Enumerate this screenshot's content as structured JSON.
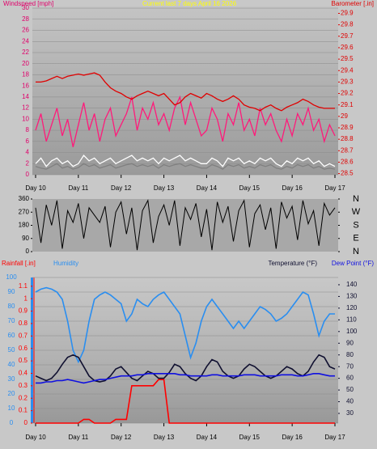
{
  "chart_data": [
    {
      "type": "line",
      "title": "Current last 7 days April 16 2026",
      "ylabel": "Windspeed [mph]",
      "y2label": "Barometer [.in]",
      "x": [
        10,
        10.125,
        10.25,
        10.375,
        10.5,
        10.625,
        10.75,
        10.875,
        11,
        11.125,
        11.25,
        11.375,
        11.5,
        11.625,
        11.75,
        11.875,
        12,
        12.125,
        12.25,
        12.375,
        12.5,
        12.625,
        12.75,
        12.875,
        13,
        13.125,
        13.25,
        13.375,
        13.5,
        13.625,
        13.75,
        13.875,
        14,
        14.125,
        14.25,
        14.375,
        14.5,
        14.625,
        14.75,
        14.875,
        15,
        15.125,
        15.25,
        15.375,
        15.5,
        15.625,
        15.75,
        15.875,
        16,
        16.125,
        16.25,
        16.375,
        16.5,
        16.625,
        16.75,
        16.875,
        17
      ],
      "xlim": [
        10,
        17
      ],
      "xticks": [
        {
          "value": 10,
          "label": "Day 10"
        },
        {
          "value": 11,
          "label": "Day 11"
        },
        {
          "value": 12,
          "label": "Day 12"
        },
        {
          "value": 13,
          "label": "Day 13"
        },
        {
          "value": 14,
          "label": "Day 14"
        },
        {
          "value": 15,
          "label": "Day 15"
        },
        {
          "value": 16,
          "label": "Day 16"
        },
        {
          "value": 17,
          "label": "Day 17"
        }
      ],
      "ylim": [
        0,
        30.3
      ],
      "yticks": [
        0,
        2,
        4,
        6,
        8,
        10,
        12,
        14,
        16,
        18,
        20,
        22,
        24,
        26,
        28,
        30
      ],
      "y2lim": [
        28.49,
        29.96
      ],
      "y2ticks": [
        28.5,
        28.6,
        28.7,
        28.8,
        28.9,
        29,
        29.1,
        29.2,
        29.3,
        29.4,
        29.5,
        29.6,
        29.7,
        29.8,
        29.9
      ],
      "grid": true,
      "series": [
        {
          "color": "#ff1a7a",
          "values": [
            8,
            11,
            6,
            9,
            12,
            7,
            10,
            5,
            9,
            13,
            8,
            11,
            6,
            10,
            12,
            7,
            9,
            11,
            14,
            8,
            12,
            10,
            13,
            9,
            11,
            8,
            12,
            14,
            9,
            13,
            10,
            7,
            8,
            12,
            10,
            6,
            11,
            9,
            13,
            8,
            10,
            7,
            12,
            9,
            11,
            8,
            6,
            10,
            7,
            11,
            9,
            12,
            8,
            10,
            6,
            9,
            7
          ]
        },
        {
          "color": "#808080",
          "values": [
            1.5,
            1.2,
            1,
            1.5,
            2,
            1.2,
            1.5,
            1,
            1.3,
            2,
            1.5,
            1.8,
            1.2,
            1.5,
            1.8,
            1.2,
            1.5,
            1.8,
            2,
            1.5,
            1.8,
            1.5,
            1.8,
            1.2,
            1.8,
            1.5,
            1.8,
            2,
            1.5,
            1.8,
            1.5,
            1.2,
            1.2,
            1.8,
            1.5,
            1,
            1.8,
            1.5,
            1.8,
            1.2,
            1.5,
            1.2,
            1.8,
            1.5,
            1.8,
            1.2,
            1,
            1.5,
            1.2,
            1.8,
            1.5,
            1.8,
            1.2,
            1.5,
            1,
            1.2,
            1
          ]
        },
        {
          "color": "#ffffff",
          "values": [
            2,
            3,
            1.5,
            2.5,
            3,
            2,
            2.5,
            1.5,
            2,
            3.5,
            2.5,
            3,
            2,
            2.5,
            3,
            2,
            2.5,
            3,
            3.5,
            2.5,
            3,
            2.5,
            3,
            2,
            3,
            2.5,
            3,
            3.5,
            2.5,
            3,
            2.5,
            2,
            2,
            3,
            2.5,
            1.5,
            3,
            2.5,
            3,
            2,
            2.5,
            2,
            3,
            2.5,
            3,
            2,
            1.5,
            2.5,
            2,
            3,
            2.5,
            3,
            2,
            2.5,
            1.5,
            2,
            1.5
          ]
        },
        {
          "color": "#e00000",
          "axis": "y2",
          "values": [
            29.3,
            29.3,
            29.31,
            29.33,
            29.35,
            29.33,
            29.35,
            29.36,
            29.37,
            29.36,
            29.37,
            29.38,
            29.36,
            29.3,
            29.25,
            29.22,
            29.2,
            29.17,
            29.15,
            29.18,
            29.2,
            29.22,
            29.2,
            29.18,
            29.2,
            29.15,
            29.1,
            29.12,
            29.17,
            29.2,
            29.18,
            29.16,
            29.2,
            29.18,
            29.15,
            29.13,
            29.15,
            29.18,
            29.15,
            29.1,
            29.08,
            29.07,
            29.05,
            29.08,
            29.1,
            29.07,
            29.05,
            29.08,
            29.1,
            29.12,
            29.15,
            29.13,
            29.1,
            29.08,
            29.07,
            29.07,
            29.07
          ]
        }
      ]
    },
    {
      "type": "line",
      "x": [
        10,
        10.125,
        10.25,
        10.375,
        10.5,
        10.625,
        10.75,
        10.875,
        11,
        11.125,
        11.25,
        11.375,
        11.5,
        11.625,
        11.75,
        11.875,
        12,
        12.125,
        12.25,
        12.375,
        12.5,
        12.625,
        12.75,
        12.875,
        13,
        13.125,
        13.25,
        13.375,
        13.5,
        13.625,
        13.75,
        13.875,
        14,
        14.125,
        14.25,
        14.375,
        14.5,
        14.625,
        14.75,
        14.875,
        15,
        15.125,
        15.25,
        15.375,
        15.5,
        15.625,
        15.75,
        15.875,
        16,
        16.125,
        16.25,
        16.375,
        16.5,
        16.625,
        16.75,
        16.875,
        17
      ],
      "xlim": [
        10,
        17
      ],
      "ylim": [
        0,
        360
      ],
      "yticks": [
        0,
        90,
        180,
        270,
        360
      ],
      "y2lim": [
        0,
        360
      ],
      "y2ticks": [
        {
          "value": 0,
          "label": "N"
        },
        {
          "value": 90,
          "label": "E"
        },
        {
          "value": 180,
          "label": "S"
        },
        {
          "value": 270,
          "label": "W"
        },
        {
          "value": 360,
          "label": "N"
        }
      ],
      "grid": false,
      "series": [
        {
          "color": "#000000",
          "values": [
            300,
            60,
            320,
            180,
            350,
            20,
            280,
            200,
            330,
            90,
            300,
            250,
            200,
            310,
            30,
            270,
            340,
            120,
            300,
            10,
            280,
            350,
            60,
            240,
            320,
            180,
            350,
            40,
            300,
            220,
            330,
            100,
            290,
            10,
            340,
            200,
            310,
            70,
            280,
            350,
            30,
            260,
            320,
            150,
            300,
            20,
            340,
            230,
            310,
            80,
            350,
            190,
            280,
            40,
            330,
            250,
            300
          ]
        }
      ]
    },
    {
      "type": "line",
      "x": [
        10,
        10.125,
        10.25,
        10.375,
        10.5,
        10.625,
        10.75,
        10.875,
        11,
        11.125,
        11.25,
        11.375,
        11.5,
        11.625,
        11.75,
        11.875,
        12,
        12.125,
        12.25,
        12.375,
        12.5,
        12.625,
        12.75,
        12.875,
        13,
        13.125,
        13.25,
        13.375,
        13.5,
        13.625,
        13.75,
        13.875,
        14,
        14.125,
        14.25,
        14.375,
        14.5,
        14.625,
        14.75,
        14.875,
        15,
        15.125,
        15.25,
        15.375,
        15.5,
        15.625,
        15.75,
        15.875,
        16,
        16.125,
        16.25,
        16.375,
        16.5,
        16.625,
        16.75,
        16.875,
        17
      ],
      "xlim": [
        10,
        17
      ],
      "xticks": [
        {
          "value": 10,
          "label": "Day 10"
        },
        {
          "value": 11,
          "label": "Day 11"
        },
        {
          "value": 12,
          "label": "Day 12"
        },
        {
          "value": 13,
          "label": "Day 13"
        },
        {
          "value": 14,
          "label": "Day 14"
        },
        {
          "value": 15,
          "label": "Day 15"
        },
        {
          "value": 16,
          "label": "Day 16"
        },
        {
          "value": 17,
          "label": "Day 17"
        }
      ],
      "ylim": [
        0,
        100
      ],
      "yticks": [
        0,
        10,
        20,
        30,
        40,
        50,
        60,
        70,
        80,
        90,
        100
      ],
      "y2lim": [
        21.7,
        146.2
      ],
      "y2ticks": [
        30,
        40,
        50,
        60,
        70,
        80,
        90,
        100,
        110,
        120,
        130,
        140
      ],
      "y3lim": [
        0,
        1.17
      ],
      "y3ticks": [
        0,
        0.1,
        0.2,
        0.3,
        0.4,
        0.5,
        0.6,
        0.7,
        0.8,
        0.9,
        1,
        1.1
      ],
      "grid": true,
      "series": [
        {
          "name": "Rainfall [.in]",
          "color": "#ff0000",
          "axis": "y3",
          "values": [
            0,
            0,
            0,
            0,
            0,
            0,
            0,
            0,
            0,
            0.03,
            0.03,
            0,
            0,
            0,
            0,
            0.03,
            0.03,
            0.03,
            0.3,
            0.3,
            0.3,
            0.3,
            0.3,
            0.35,
            0.35,
            0,
            0,
            0,
            0,
            0,
            0,
            0,
            0,
            0,
            0,
            0,
            0,
            0,
            0,
            0,
            0,
            0,
            0,
            0,
            0,
            0,
            0,
            0,
            0,
            0,
            0,
            0,
            0,
            0,
            0,
            0,
            0
          ]
        },
        {
          "name": "Humidity",
          "color": "#2a8ef0",
          "values": [
            90,
            92,
            93,
            92,
            90,
            85,
            70,
            50,
            42,
            50,
            70,
            85,
            88,
            90,
            88,
            85,
            82,
            70,
            75,
            85,
            82,
            80,
            85,
            88,
            90,
            85,
            80,
            75,
            60,
            45,
            55,
            70,
            80,
            85,
            80,
            75,
            70,
            65,
            70,
            65,
            70,
            75,
            80,
            78,
            75,
            70,
            72,
            75,
            80,
            85,
            90,
            88,
            75,
            60,
            70,
            75,
            75
          ]
        },
        {
          "name": "Temperature (°F)",
          "color": "#101030",
          "axis": "y2",
          "values": [
            62,
            60,
            58,
            60,
            65,
            72,
            78,
            80,
            78,
            70,
            62,
            58,
            57,
            58,
            62,
            68,
            70,
            65,
            60,
            58,
            62,
            66,
            64,
            60,
            60,
            65,
            72,
            70,
            64,
            60,
            58,
            62,
            70,
            76,
            74,
            66,
            62,
            60,
            62,
            68,
            72,
            70,
            66,
            62,
            60,
            62,
            66,
            70,
            68,
            64,
            62,
            66,
            74,
            80,
            78,
            70,
            68
          ]
        },
        {
          "name": "Dew Point (°F)",
          "color": "#1010e0",
          "axis": "y2",
          "values": [
            56,
            56,
            57,
            57,
            58,
            58,
            59,
            58,
            57,
            56,
            57,
            58,
            59,
            59,
            60,
            61,
            62,
            62,
            62,
            63,
            63,
            64,
            64,
            64,
            64,
            64,
            64,
            63,
            63,
            62,
            62,
            62,
            62,
            63,
            63,
            62,
            62,
            62,
            62,
            63,
            63,
            63,
            62,
            62,
            62,
            62,
            63,
            63,
            63,
            62,
            62,
            63,
            64,
            64,
            63,
            62,
            62
          ]
        }
      ]
    }
  ]
}
